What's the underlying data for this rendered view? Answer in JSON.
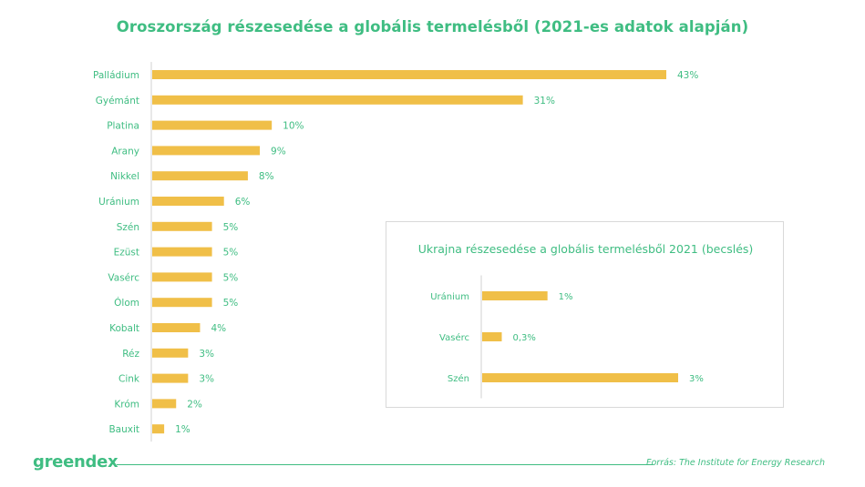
{
  "chart_data": [
    {
      "type": "bar",
      "orientation": "horizontal",
      "title": "Oroszország részesedése a globális termelésből (2021-es adatok alapján)",
      "categories": [
        "Palládium",
        "Gyémánt",
        "Platina",
        "Arany",
        "Nikkel",
        "Uránium",
        "Szén",
        "Ezüst",
        "Vasérc",
        "Ólom",
        "Kobalt",
        "Réz",
        "Cink",
        "Króm",
        "Bauxit"
      ],
      "values": [
        43,
        31,
        10,
        9,
        8,
        6,
        5,
        5,
        5,
        5,
        4,
        3,
        3,
        2,
        1
      ],
      "value_labels": [
        "43%",
        "31%",
        "10%",
        "9%",
        "8%",
        "6%",
        "5%",
        "5%",
        "5%",
        "5%",
        "4%",
        "3%",
        "3%",
        "2%",
        "1%"
      ],
      "xlim": [
        0,
        43
      ],
      "grid": false,
      "bar_color": "#f0bf48",
      "label_color": "#3fbd82"
    },
    {
      "type": "bar",
      "orientation": "horizontal",
      "title": "Ukrajna részesedése a globális termelésből 2021 (becslés)",
      "categories": [
        "Uránium",
        "Vasérc",
        "Szén"
      ],
      "values": [
        1,
        0.3,
        3
      ],
      "value_labels": [
        "1%",
        "0,3%",
        "3%"
      ],
      "xlim": [
        0,
        3
      ],
      "grid": false,
      "bar_color": "#f0bf48",
      "label_color": "#3fbd82"
    }
  ],
  "footer": {
    "brand": "greendex",
    "source": "Forrás: The Institute for Energy Research"
  },
  "colors": {
    "accent": "#3fbd82",
    "bar": "#f0bf48",
    "axis": "#d0d0d0"
  }
}
